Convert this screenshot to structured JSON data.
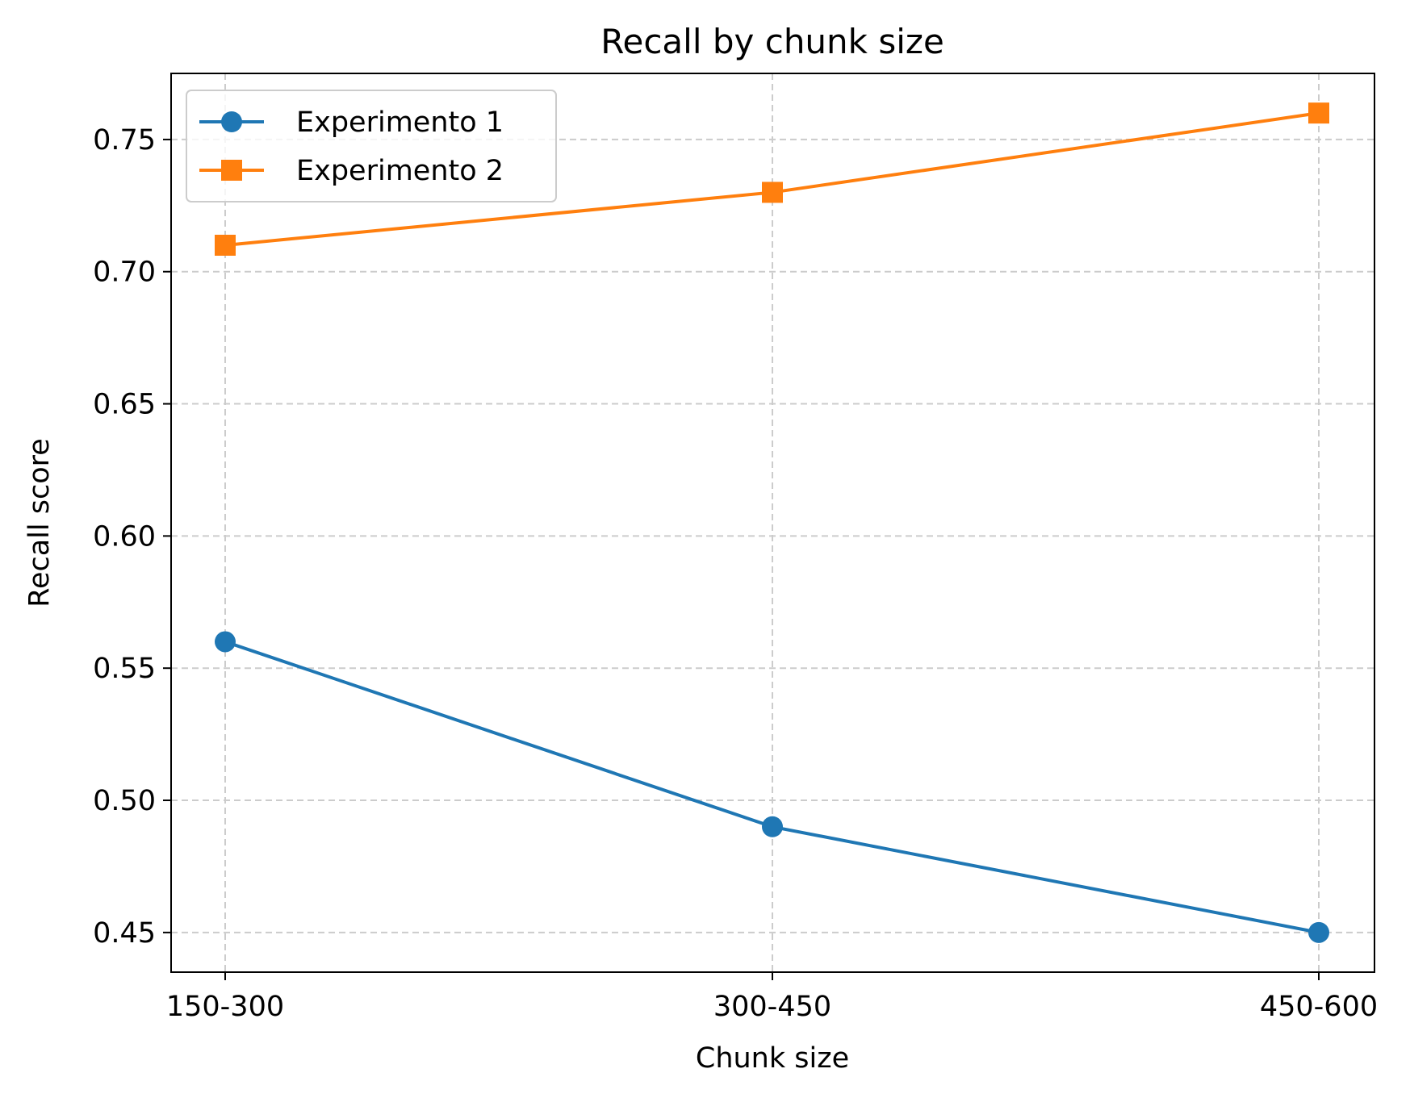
{
  "chart_data": {
    "type": "line",
    "title": "Recall by chunk size",
    "xlabel": "Chunk size",
    "ylabel": "Recall score",
    "categories": [
      "150-300",
      "300-450",
      "450-600"
    ],
    "ylim": [
      0.435,
      0.775
    ],
    "yticks": [
      0.45,
      0.5,
      0.55,
      0.6,
      0.65,
      0.7,
      0.75
    ],
    "ytick_labels": [
      "0.45",
      "0.50",
      "0.55",
      "0.60",
      "0.65",
      "0.70",
      "0.75"
    ],
    "grid": true,
    "legend_position": "top-left",
    "series": [
      {
        "name": "Experimento 1",
        "values": [
          0.56,
          0.49,
          0.45
        ],
        "color": "#1f77b4",
        "marker": "circle"
      },
      {
        "name": "Experimento 2",
        "values": [
          0.71,
          0.73,
          0.76
        ],
        "color": "#ff7f0e",
        "marker": "square"
      }
    ]
  }
}
